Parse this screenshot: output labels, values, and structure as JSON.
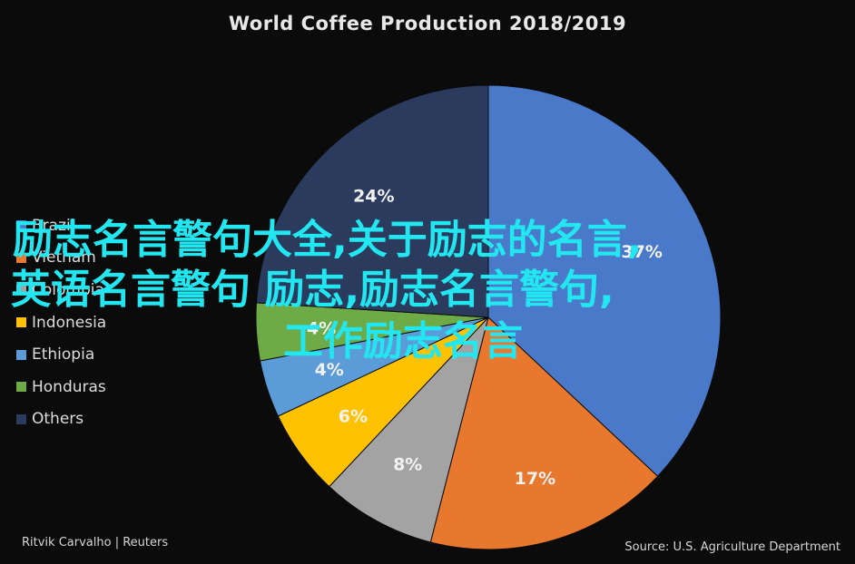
{
  "chart_data": {
    "type": "pie",
    "title": "World Coffee Production 2018/2019",
    "categories": [
      "Brazil",
      "Vietnam",
      "Colombia",
      "Indonesia",
      "Ethiopia",
      "Honduras",
      "Others"
    ],
    "slices": [
      {
        "label": "Brazil",
        "value": 37,
        "label_text": "37%",
        "color": "#4a79c9"
      },
      {
        "label": "Vietnam",
        "value": 17,
        "label_text": "17%",
        "color": "#e8782e"
      },
      {
        "label": "Colombia",
        "value": 8,
        "label_text": "8%",
        "color": "#a3a3a3"
      },
      {
        "label": "Indonesia",
        "value": 6,
        "label_text": "6%",
        "color": "#fec200"
      },
      {
        "label": "Ethiopia",
        "value": 4,
        "label_text": "4%",
        "color": "#5a9bd8"
      },
      {
        "label": "Honduras",
        "value": 4,
        "label_text": "4%",
        "color": "#6eab46"
      },
      {
        "label": "Others",
        "value": 24,
        "label_text": "24%",
        "color": "#2a3b5e"
      }
    ],
    "legend_position": "left"
  },
  "overlay": {
    "line1": "励志名言警句大全,关于励志的名言,",
    "line2": "英语名言警句 励志,励志名言警句,",
    "line3": "工作励志名言"
  },
  "footer": {
    "credit": "Ritvik Carvalho | Reuters",
    "source": "Source: U.S. Agriculture Department"
  }
}
